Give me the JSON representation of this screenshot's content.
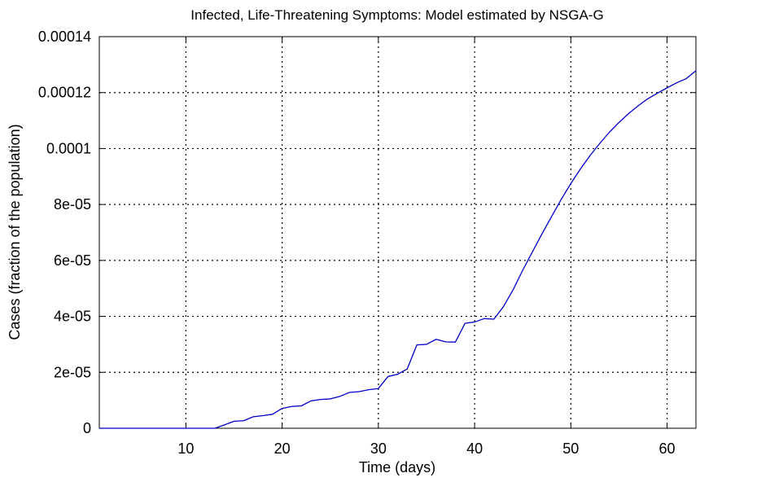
{
  "chart_data": {
    "type": "line",
    "title": "Infected, Life-Threatening Symptoms: Model estimated by NSGA-G",
    "xlabel": "Time (days)",
    "ylabel": "Cases (fraction of the population)",
    "xlim": [
      1,
      63
    ],
    "ylim": [
      0,
      0.00014
    ],
    "grid": true,
    "x_ticks": [
      10,
      20,
      30,
      40,
      50,
      60
    ],
    "x_tick_labels": [
      "10",
      "20",
      "30",
      "40",
      "50",
      "60"
    ],
    "y_ticks": [
      0,
      2e-05,
      4e-05,
      6e-05,
      8e-05,
      0.0001,
      0.00012,
      0.00014
    ],
    "y_tick_labels": [
      "0",
      "2e-05",
      "4e-05",
      "6e-05",
      "8e-05",
      "0.0001",
      "0.00012",
      "0.00014"
    ],
    "series": [
      {
        "color": "#0000cc",
        "x": [
          1,
          13,
          14,
          15,
          16,
          17,
          18,
          19,
          20,
          21,
          22,
          23,
          24,
          25,
          26,
          27,
          28,
          29,
          30,
          31,
          32,
          33,
          34,
          35,
          36,
          37,
          38,
          39,
          40,
          41,
          42,
          43,
          44,
          45,
          46,
          47,
          48,
          49,
          50,
          51,
          52,
          53,
          54,
          55,
          56,
          57,
          58,
          59,
          60,
          61,
          62,
          63
        ],
        "values": [
          0,
          0,
          1.2e-06,
          2.5e-06,
          2.7e-06,
          4.1e-06,
          4.5e-06,
          5e-06,
          7.1e-06,
          7.8e-06,
          8e-06,
          9.8e-06,
          1.03e-05,
          1.05e-05,
          1.14e-05,
          1.28e-05,
          1.31e-05,
          1.38e-05,
          1.42e-05,
          1.85e-05,
          1.93e-05,
          2.12e-05,
          2.98e-05,
          3e-05,
          3.18e-05,
          3.09e-05,
          3.08e-05,
          3.75e-05,
          3.8e-05,
          3.92e-05,
          3.9e-05,
          4.35e-05,
          4.95e-05,
          5.65e-05,
          6.3e-05,
          6.95e-05,
          7.57e-05,
          8.18e-05,
          8.75e-05,
          9.27e-05,
          9.75e-05,
          0.0001018,
          0.0001058,
          0.0001093,
          0.0001125,
          0.0001153,
          0.0001178,
          0.0001198,
          0.0001217,
          0.0001235,
          0.000125,
          0.0001278
        ]
      }
    ]
  }
}
